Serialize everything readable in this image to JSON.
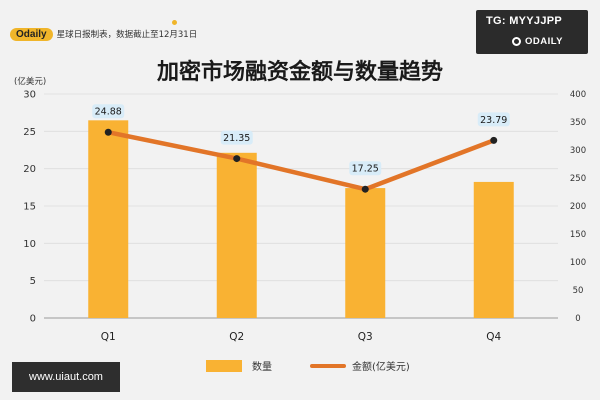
{
  "header": {
    "brand": "Odaily",
    "note": "星球日报制表，数据截止至12月31日"
  },
  "badge": {
    "tg": "TG: MYYJJPP",
    "logo": "ODAILY"
  },
  "watermark": "www.uiaut.com",
  "chart_data": {
    "type": "bar",
    "title": "加密市场融资金额与数量趋势",
    "categories": [
      "Q1",
      "Q2",
      "Q3",
      "Q4"
    ],
    "y_left_unit": "(亿美元)",
    "ylim_left": [
      0,
      30
    ],
    "yticks_left": [
      0,
      5,
      10,
      15,
      20,
      25,
      30
    ],
    "ylim_right": [
      0,
      400
    ],
    "yticks_right": [
      0,
      50,
      100,
      150,
      200,
      250,
      300,
      350,
      400
    ],
    "grid": true,
    "legend_position": "bottom",
    "series": [
      {
        "name": "数量",
        "type": "bar",
        "axis": "right",
        "color": "#f9b233",
        "values": [
          353,
          295,
          232,
          243
        ]
      },
      {
        "name": "金额(亿美元)",
        "type": "line",
        "axis": "left",
        "color": "#e27528",
        "values": [
          24.88,
          21.35,
          17.25,
          23.79
        ],
        "labels": [
          "24.88",
          "21.35",
          "17.25",
          "23.79"
        ]
      }
    ]
  }
}
